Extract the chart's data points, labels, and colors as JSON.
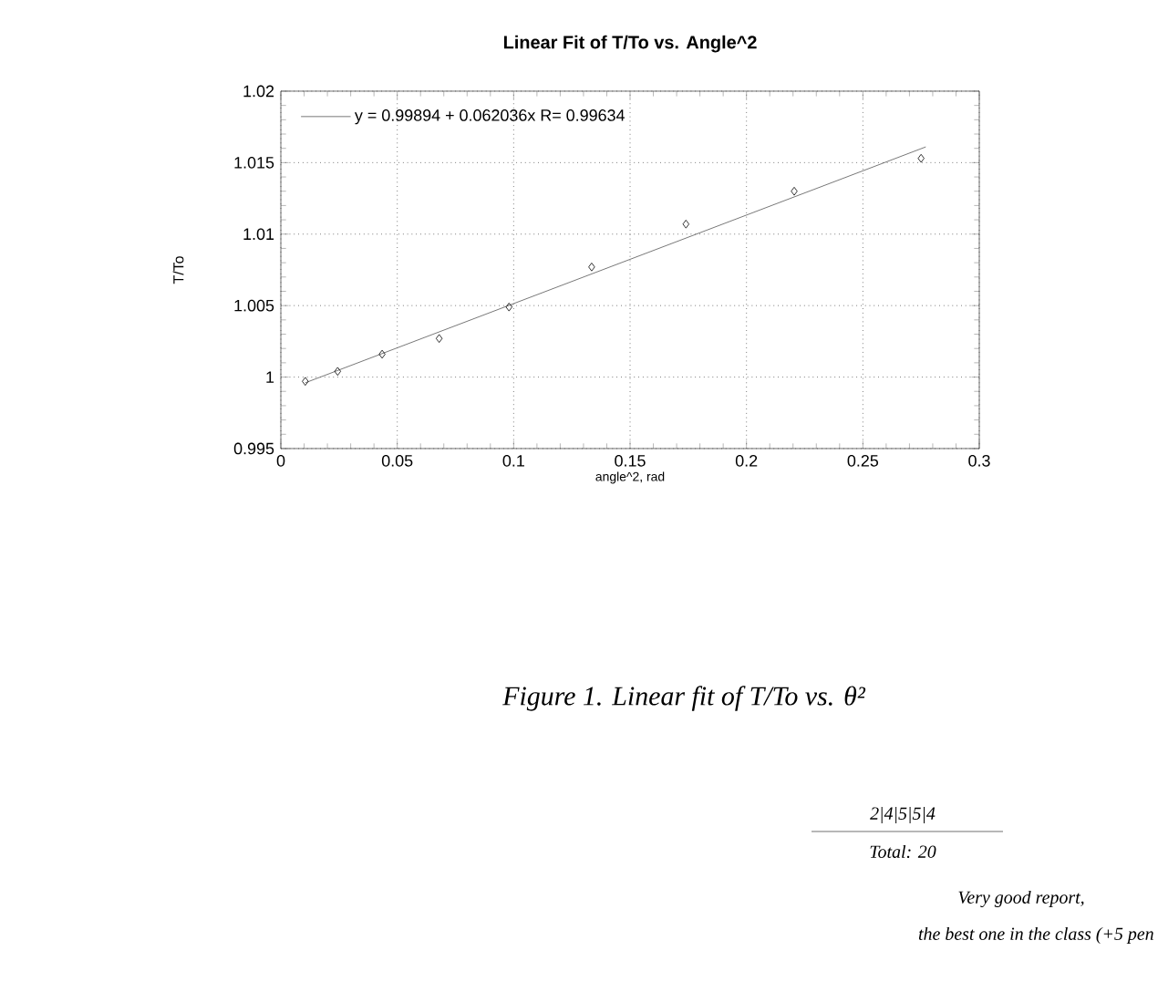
{
  "chart_data": {
    "type": "scatter",
    "title": "Linear Fit of T/To vs. Angle^2",
    "xlabel": "angle^2, rad",
    "ylabel": "T/To",
    "xlim": [
      0,
      0.3
    ],
    "ylim": [
      0.995,
      1.02
    ],
    "xticks": [
      0,
      0.05,
      0.1,
      0.15,
      0.2,
      0.25,
      0.3
    ],
    "yticks": [
      0.995,
      1,
      1.005,
      1.01,
      1.015,
      1.02
    ],
    "grid": true,
    "legend": "top left",
    "series": [
      {
        "color": "#000000",
        "marker": "diamond",
        "x": [
          0.0105,
          0.0244,
          0.0435,
          0.068,
          0.098,
          0.1335,
          0.174,
          0.2205,
          0.275
        ],
        "values": [
          0.9997,
          1.0004,
          1.0016,
          1.0027,
          1.0049,
          1.0077,
          1.0107,
          1.013,
          1.0153
        ]
      },
      {
        "type": "line",
        "name": "y = 0.99894 + 0.062036x R= 0.99634",
        "color": "#555555",
        "marker": "none",
        "line_style": "solid",
        "x": [
          0.0105,
          0.277
        ],
        "values": [
          0.9996,
          1.0161
        ]
      }
    ],
    "annotations": [
      "Figure 1. Linear fit of T/To vs. θ²",
      "2|4|5|5|4",
      "Total: 20",
      "Very good report,",
      "the best one in the class (+5 pen"
    ]
  }
}
